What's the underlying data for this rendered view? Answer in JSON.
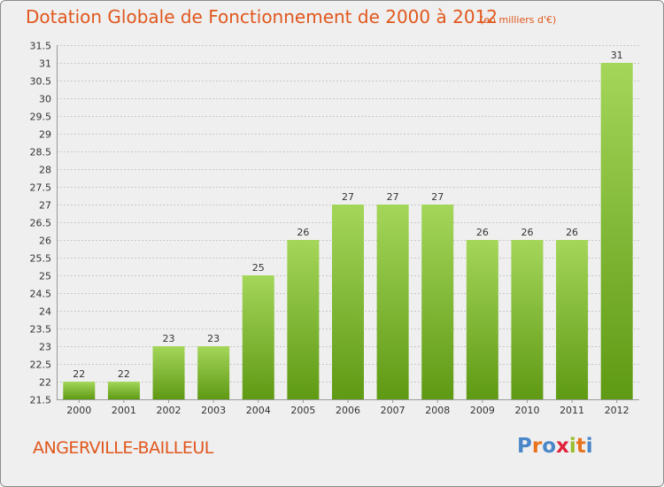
{
  "header": {
    "title": "Dotation Globale de Fonctionnement de 2000 à 2012",
    "subtitle": "(en milliers d'€)"
  },
  "footer": {
    "town": "ANGERVILLE-BAILLEUL",
    "logo_text": "Proxiti",
    "logo_letters": [
      "P",
      "r",
      "o",
      "x",
      "i",
      "t",
      "i"
    ],
    "logo_colors": [
      "#4a86c8",
      "#e8731c",
      "#4a86c8",
      "#e0233a",
      "#9bbf2e",
      "#e8731c",
      "#4a86c8"
    ]
  },
  "colors": {
    "title": "#e0571d",
    "bar_light": "#a4d65a",
    "bar_dark": "#5f9a14",
    "grid": "#c8c8c8",
    "axis_text": "#333333"
  },
  "chart_data": {
    "type": "bar",
    "title": "Dotation Globale de Fonctionnement de 2000 à 2012",
    "xlabel": "",
    "ylabel": "",
    "categories": [
      "2000",
      "2001",
      "2002",
      "2003",
      "2004",
      "2005",
      "2006",
      "2007",
      "2008",
      "2009",
      "2010",
      "2011",
      "2012"
    ],
    "values": [
      22,
      22,
      23,
      23,
      25,
      26,
      27,
      27,
      27,
      26,
      26,
      26,
      31
    ],
    "ylim": [
      21.5,
      31.5
    ],
    "yticks": [
      "21.5",
      "22",
      "22.5",
      "23",
      "23.5",
      "24",
      "24.5",
      "25",
      "25.5",
      "26",
      "26.5",
      "27",
      "27.5",
      "28",
      "28.5",
      "29",
      "29.5",
      "30",
      "30.5",
      "31",
      "31.5"
    ],
    "grid": true
  }
}
